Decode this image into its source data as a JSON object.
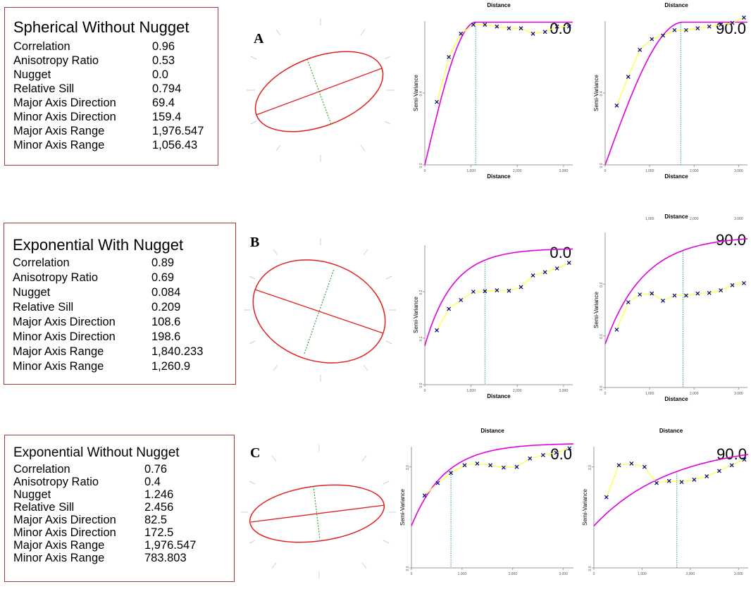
{
  "panels": [
    {
      "letter": "A",
      "title": "Spherical Without Nugget",
      "rows": [
        {
          "label": "Correlation",
          "value": "0.96"
        },
        {
          "label": "Anisotropy Ratio",
          "value": "0.53"
        },
        {
          "label": "Nugget",
          "value": "0.0"
        },
        {
          "label": "Relative Sill",
          "value": "0.794"
        },
        {
          "label": "Major Axis Direction",
          "value": "69.4"
        },
        {
          "label": "Minor Axis Direction",
          "value": "159.4"
        },
        {
          "label": "Major Axis Range",
          "value": "1,976.547"
        },
        {
          "label": "Minor Axis Range",
          "value": "1,056.43"
        }
      ]
    },
    {
      "letter": "B",
      "title": "Exponential With Nugget",
      "rows": [
        {
          "label": "Correlation",
          "value": "0.89"
        },
        {
          "label": "Anisotropy Ratio",
          "value": "0.69"
        },
        {
          "label": "Nugget",
          "value": "0.084"
        },
        {
          "label": "Relative Sill",
          "value": "0.209"
        },
        {
          "label": "Major Axis Direction",
          "value": "108.6"
        },
        {
          "label": "Minor Axis Direction",
          "value": "198.6"
        },
        {
          "label": "Major Axis Range",
          "value": "1,840.233"
        },
        {
          "label": "Minor Axis Range",
          "value": "1,260.9"
        }
      ]
    },
    {
      "letter": "C",
      "title": "Exponential Without Nugget",
      "rows": [
        {
          "label": "Correlation",
          "value": "0.76"
        },
        {
          "label": "Anisotropy Ratio",
          "value": "0.4"
        },
        {
          "label": "Nugget",
          "value": "1.246"
        },
        {
          "label": "Relative Sill",
          "value": "2.456"
        },
        {
          "label": "Major Axis Direction",
          "value": "82.5"
        },
        {
          "label": "Minor Axis Direction",
          "value": "172.5"
        },
        {
          "label": "Major Axis Range",
          "value": "1,976.547"
        },
        {
          "label": "Minor Axis Range",
          "value": "783.803"
        }
      ]
    }
  ],
  "colors": {
    "model_curve": "#e000e0",
    "empirical_line": "#ffff40",
    "point_marker": "#00008b",
    "range_line": "#2aa0a0",
    "ellipse": "#e02020",
    "minor_axis": "#3aa03a",
    "panel_border": "#a33a3a"
  },
  "chart_data": [
    {
      "id": "A-0",
      "type": "line",
      "direction_label": "0.0",
      "top_label": "Distance",
      "xlabel": "Distance",
      "ylabel": "Semi-Variance",
      "xlim": [
        0,
        3200
      ],
      "ylim": [
        0,
        0.8
      ],
      "x_ticks": [
        "0",
        "1,000",
        "2,000",
        "3,000"
      ],
      "y_ticks": [
        "0.0",
        "0.4"
      ],
      "range_x": 1100,
      "model": {
        "kind": "spherical",
        "nugget": 0.0,
        "sill": 0.794,
        "range": 1100
      },
      "series": [
        {
          "x": [
            260,
            520,
            780,
            1050,
            1300,
            1560,
            1820,
            2080,
            2340,
            2600,
            2860,
            3120
          ],
          "values": [
            0.35,
            0.6,
            0.73,
            0.78,
            0.78,
            0.77,
            0.76,
            0.76,
            0.73,
            0.74,
            0.77,
            0.77
          ]
        }
      ]
    },
    {
      "id": "A-90",
      "type": "line",
      "direction_label": "90.0",
      "top_label": "Distance",
      "xlabel": "Distance",
      "ylabel": "Semi-Variance",
      "xlim": [
        0,
        3200
      ],
      "ylim": [
        0,
        0.8
      ],
      "x_ticks": [
        "0",
        "1,000",
        "2,000",
        "3,000"
      ],
      "y_ticks": [
        "0.0",
        "0.4"
      ],
      "range_x": 1700,
      "model": {
        "kind": "spherical",
        "nugget": 0.0,
        "sill": 0.794,
        "range": 1750
      },
      "series": [
        {
          "x": [
            260,
            520,
            780,
            1050,
            1300,
            1560,
            1820,
            2080,
            2340,
            2600,
            2860,
            3120
          ],
          "values": [
            0.33,
            0.49,
            0.64,
            0.7,
            0.72,
            0.75,
            0.75,
            0.76,
            0.77,
            0.78,
            0.79,
            0.82
          ]
        }
      ]
    },
    {
      "id": "B-0",
      "type": "line",
      "direction_label": "0.0",
      "top_label": "",
      "xlabel": "Distance",
      "ylabel": "Semi-Variance",
      "xlim": [
        0,
        3200
      ],
      "ylim": [
        0,
        0.3
      ],
      "x_ticks": [
        "0",
        "1,000",
        "2,000",
        "3,000"
      ],
      "y_ticks": [
        "0.0",
        "0.1",
        "0.2"
      ],
      "range_x": 1300,
      "model": {
        "kind": "exponential",
        "nugget": 0.084,
        "sill": 0.209,
        "range": 1840
      },
      "series": [
        {
          "x": [
            260,
            520,
            780,
            1050,
            1300,
            1560,
            1820,
            2080,
            2340,
            2600,
            2860,
            3120
          ],
          "values": [
            0.117,
            0.163,
            0.182,
            0.2,
            0.201,
            0.203,
            0.202,
            0.21,
            0.235,
            0.242,
            0.25,
            0.262
          ]
        }
      ]
    },
    {
      "id": "B-90",
      "type": "line",
      "direction_label": "90.0",
      "top_label": "Distance",
      "xlabel": "Distance",
      "ylabel": "Semi-Variance",
      "xlim": [
        0,
        3200
      ],
      "ylim": [
        0,
        0.3
      ],
      "x_ticks": [
        "0",
        "1,000",
        "2,000",
        "3,000"
      ],
      "y_ticks": [
        "0.0",
        "0.1",
        "0.2"
      ],
      "top_ticks": [
        "1,000",
        "2,000",
        "3,000"
      ],
      "range_x": 1750,
      "model": {
        "kind": "exponential",
        "nugget": 0.084,
        "sill": 0.209,
        "range": 2600
      },
      "series": [
        {
          "x": [
            260,
            520,
            780,
            1050,
            1300,
            1560,
            1820,
            2080,
            2340,
            2600,
            2860,
            3120
          ],
          "values": [
            0.112,
            0.165,
            0.18,
            0.182,
            0.168,
            0.178,
            0.178,
            0.182,
            0.183,
            0.188,
            0.198,
            0.202
          ]
        }
      ]
    },
    {
      "id": "C-0",
      "type": "line",
      "direction_label": "0.0",
      "top_label": "Distance",
      "xlabel": "",
      "ylabel": "Semi-Variance",
      "xlim": [
        0,
        3200
      ],
      "ylim": [
        0,
        3.6
      ],
      "x_ticks": [
        "0",
        "1,000",
        "2,000",
        "3,000"
      ],
      "y_ticks": [
        "0.0",
        "3.0"
      ],
      "range_x": 780,
      "model": {
        "kind": "exponential",
        "nugget": 1.246,
        "sill": 2.456,
        "range": 1976
      },
      "series": [
        {
          "x": [
            260,
            520,
            780,
            1050,
            1300,
            1560,
            1820,
            2080,
            2340,
            2600,
            2860,
            3120
          ],
          "values": [
            2.15,
            2.52,
            2.82,
            3.05,
            3.1,
            3.05,
            2.98,
            3.0,
            3.25,
            3.35,
            3.42,
            3.55
          ]
        }
      ]
    },
    {
      "id": "C-90",
      "type": "line",
      "direction_label": "90.0",
      "top_label": "Distance",
      "xlabel": "",
      "ylabel": "Semi-Variance",
      "xlim": [
        0,
        3200
      ],
      "ylim": [
        0,
        3.6
      ],
      "x_ticks": [
        "0",
        "1,000",
        "2,000",
        "3,000"
      ],
      "y_ticks": [
        "0.0",
        "3.0"
      ],
      "range_x": 1720,
      "model": {
        "kind": "exponential",
        "nugget": 1.246,
        "sill": 2.456,
        "range": 4800
      },
      "series": [
        {
          "x": [
            260,
            520,
            780,
            1050,
            1300,
            1560,
            1820,
            2080,
            2340,
            2600,
            2860,
            3120
          ],
          "values": [
            2.1,
            3.05,
            3.1,
            3.0,
            2.52,
            2.58,
            2.55,
            2.62,
            2.72,
            2.88,
            3.05,
            3.22
          ]
        }
      ]
    }
  ]
}
